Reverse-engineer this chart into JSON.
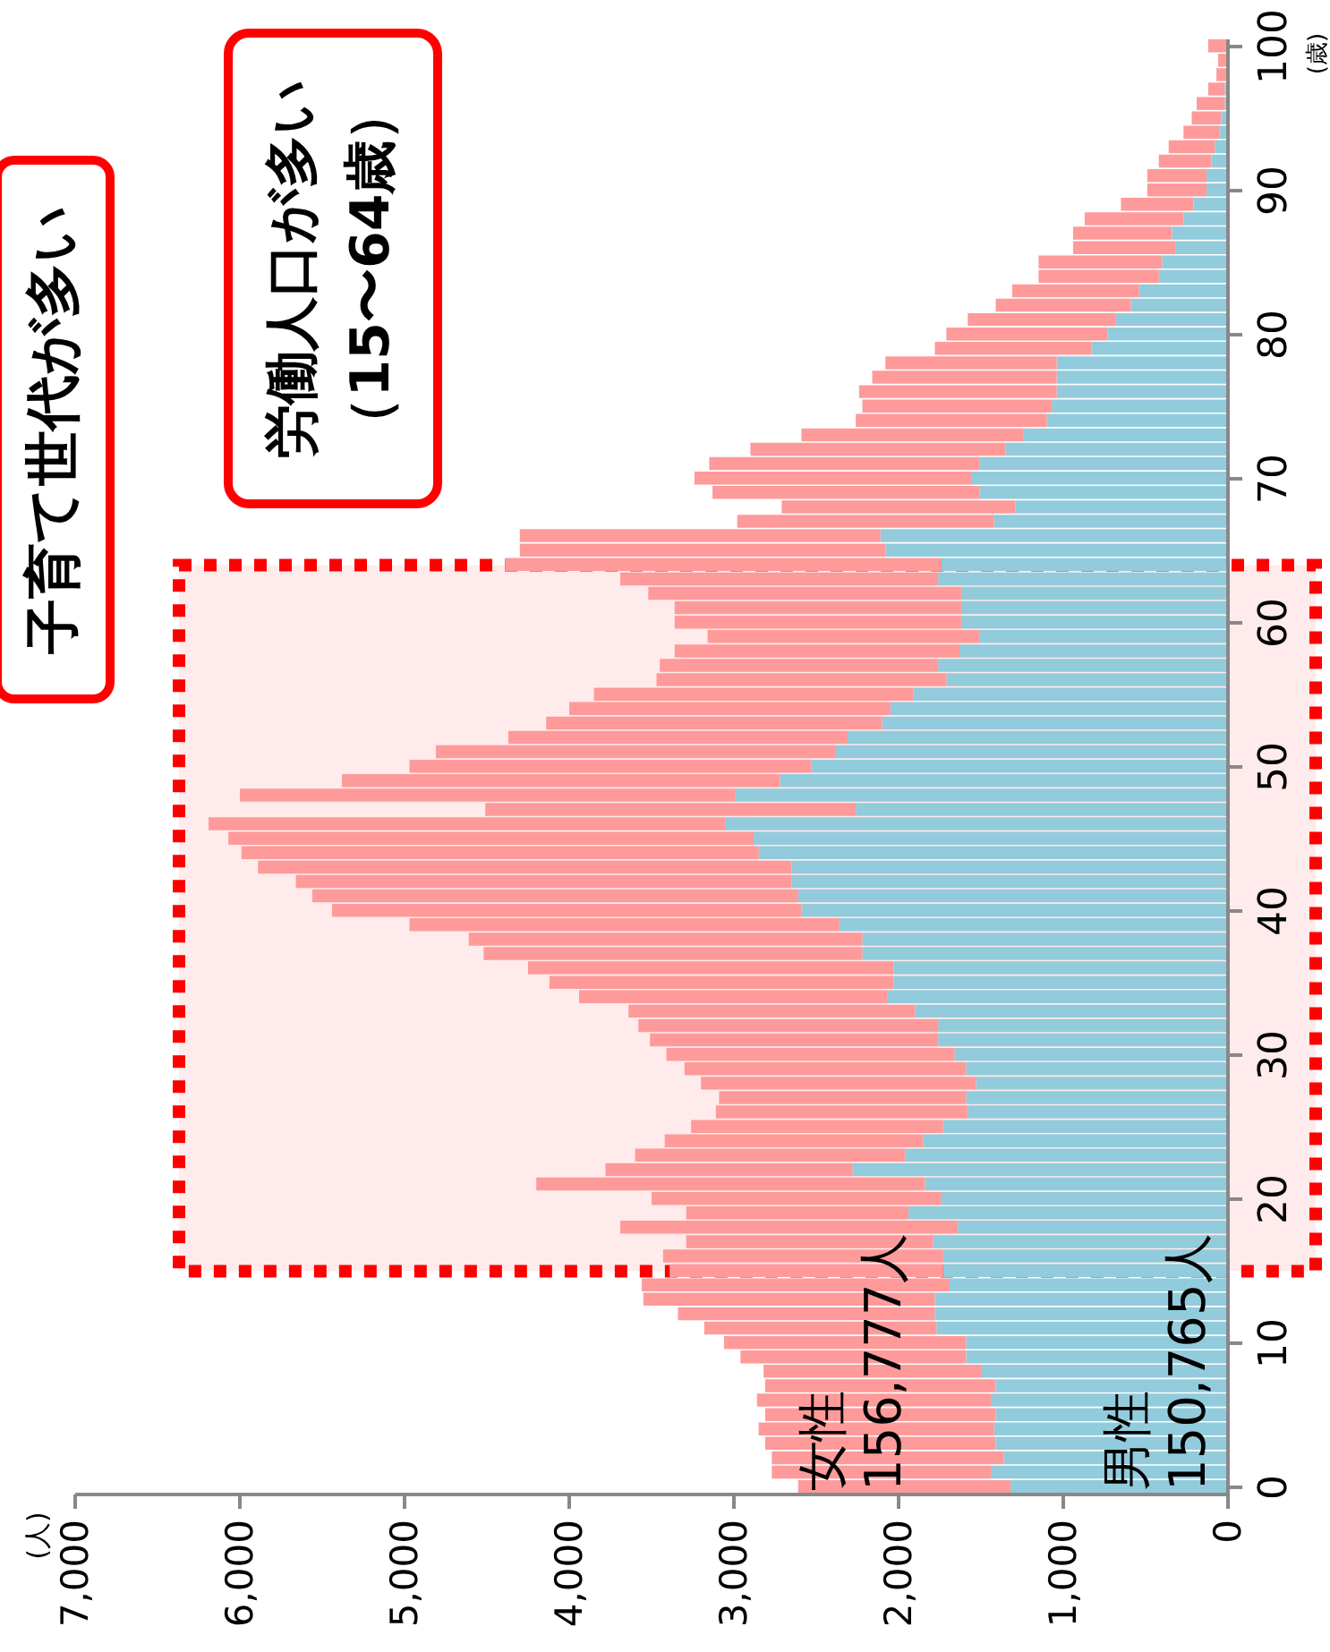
{
  "chart_data": {
    "type": "bar",
    "stacked": true,
    "orientation": "horizontal",
    "ylabel": "(歳)",
    "annotations": [
      "子育て世代が多い",
      "労働人口が多い（15〜64歳）",
      "150,765人",
      "156,777人",
      "(人)"
    ],
    "x": [
      0,
      1,
      2,
      3,
      4,
      5,
      6,
      7,
      8,
      9,
      10,
      11,
      12,
      13,
      14,
      15,
      16,
      17,
      18,
      19,
      20,
      21,
      22,
      23,
      24,
      25,
      26,
      27,
      28,
      29,
      30,
      31,
      32,
      33,
      34,
      35,
      36,
      37,
      38,
      39,
      40,
      41,
      42,
      43,
      44,
      45,
      46,
      47,
      48,
      49,
      50,
      51,
      52,
      53,
      54,
      55,
      56,
      57,
      58,
      59,
      60,
      61,
      62,
      63,
      64,
      65,
      66,
      67,
      68,
      69,
      70,
      71,
      72,
      73,
      74,
      75,
      76,
      77,
      78,
      79,
      80,
      81,
      82,
      83,
      84,
      85,
      86,
      87,
      88,
      89,
      90,
      91,
      92,
      93,
      94,
      95,
      96,
      97,
      98,
      99,
      100
    ],
    "series": [
      {
        "name": "男性",
        "color": "#92cbdc",
        "values": [
          1320,
          1440,
          1360,
          1410,
          1420,
          1410,
          1440,
          1410,
          1500,
          1590,
          1590,
          1770,
          1780,
          1780,
          1690,
          1730,
          1730,
          1790,
          1640,
          1940,
          1740,
          1840,
          2280,
          1960,
          1850,
          1730,
          1580,
          1590,
          1530,
          1590,
          1660,
          1760,
          1760,
          1900,
          2070,
          2030,
          2030,
          2220,
          2220,
          2360,
          2590,
          2610,
          2650,
          2650,
          2850,
          2880,
          3050,
          2260,
          2990,
          2720,
          2530,
          2380,
          2310,
          2100,
          2050,
          1910,
          1710,
          1760,
          1630,
          1510,
          1620,
          1620,
          1620,
          1760,
          1740,
          2080,
          2110,
          1420,
          1290,
          1510,
          1560,
          1510,
          1350,
          1240,
          1100,
          1070,
          1040,
          1040,
          1040,
          830,
          730,
          680,
          590,
          540,
          420,
          400,
          320,
          340,
          270,
          210,
          130,
          130,
          100,
          80,
          50,
          40,
          20,
          20,
          null,
          null,
          null
        ]
      },
      {
        "name": "女性",
        "color": "#ff9a9a",
        "values": [
          1290,
          1330,
          1410,
          1400,
          1430,
          1400,
          1420,
          1400,
          1320,
          1370,
          1470,
          1410,
          1560,
          1770,
          1870,
          1660,
          1700,
          1500,
          2050,
          1350,
          1760,
          2360,
          1500,
          1640,
          1570,
          1530,
          1530,
          1500,
          1670,
          1710,
          1750,
          1750,
          1820,
          1740,
          1870,
          2090,
          2220,
          2300,
          2390,
          2610,
          2850,
          2950,
          3010,
          3240,
          3140,
          3190,
          3140,
          2250,
          3010,
          2660,
          2440,
          2430,
          2060,
          2040,
          1950,
          1940,
          1760,
          1690,
          1730,
          1650,
          1740,
          1740,
          1900,
          1930,
          2650,
          2220,
          2190,
          1560,
          1420,
          1620,
          1680,
          1640,
          1550,
          1350,
          1160,
          1150,
          1200,
          1120,
          1040,
          950,
          980,
          900,
          820,
          770,
          730,
          750,
          620,
          600,
          600,
          440,
          360,
          360,
          320,
          280,
          220,
          180,
          170,
          100,
          70,
          60,
          120
        ]
      }
    ],
    "ylim": [
      -0.5,
      100.5
    ],
    "yticks": [
      0,
      10,
      20,
      30,
      40,
      50,
      60,
      70,
      80,
      90,
      100
    ],
    "xlim": [
      7000,
      0
    ],
    "xticks": [
      {
        "value": 7000,
        "label": "7,000"
      },
      {
        "value": 6000,
        "label": "6,000"
      },
      {
        "value": 5000,
        "label": "5,000"
      },
      {
        "value": 4000,
        "label": "4,000"
      },
      {
        "value": 3000,
        "label": "3,000"
      },
      {
        "value": 2000,
        "label": "2,000"
      },
      {
        "value": 1000,
        "label": "1,000"
      },
      0
    ],
    "bands": [
      {
        "axis": "y",
        "from": 15,
        "to": 64,
        "color": "#ff0000"
      }
    ]
  }
}
